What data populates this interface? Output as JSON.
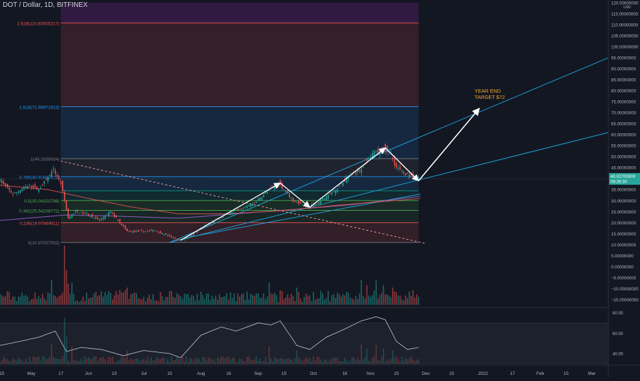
{
  "header": {
    "title": "DOT / Dollar, 1D, BITFINEX"
  },
  "currency_label": "USD",
  "colors": {
    "background": "#131722",
    "text": "#b2b5be",
    "up": "#26a69a",
    "down": "#ef5350",
    "channel": "#1e9fd8",
    "target_arrow": "#ffffff",
    "annotation": "#f5a623",
    "last_price_bg": "#26a69a"
  },
  "annotation": {
    "line1": "YEAR END",
    "line2": "TARGET $72"
  },
  "last_price": {
    "value": "40.02700000",
    "countdown": "08:28:30"
  },
  "chart_data": {
    "type": "candlestick",
    "y_axis": {
      "ylim": [
        -18,
        120
      ],
      "ticks": [
        {
          "value": 120,
          "label": "120.00000000"
        },
        {
          "value": 115,
          "label": "115.00000000"
        },
        {
          "value": 110,
          "label": "110.00000000"
        },
        {
          "value": 105,
          "label": "105.00000000"
        },
        {
          "value": 100,
          "label": "100.00000000"
        },
        {
          "value": 95,
          "label": "95.00000000"
        },
        {
          "value": 90,
          "label": "90.00000000"
        },
        {
          "value": 85,
          "label": "85.00000000"
        },
        {
          "value": 80,
          "label": "80.00000000"
        },
        {
          "value": 75,
          "label": "75.00000000"
        },
        {
          "value": 70,
          "label": "70.00000000"
        },
        {
          "value": 65,
          "label": "65.00000000"
        },
        {
          "value": 60,
          "label": "60.00000000"
        },
        {
          "value": 55,
          "label": "55.00000000"
        },
        {
          "value": 50,
          "label": "50.00000000"
        },
        {
          "value": 45,
          "label": "45.00000000"
        },
        {
          "value": 35,
          "label": "35.00000000"
        },
        {
          "value": 30,
          "label": "30.00000000"
        },
        {
          "value": 25,
          "label": "25.00000000"
        },
        {
          "value": 20,
          "label": "20.00000000"
        },
        {
          "value": 15,
          "label": "15.00000000"
        },
        {
          "value": 10,
          "label": "10.00000000"
        },
        {
          "value": 5,
          "label": "5.00000000"
        },
        {
          "value": 0,
          "label": "0.00000000"
        },
        {
          "value": -5,
          "label": "−5.00000000"
        },
        {
          "value": -10,
          "label": "−10.00000000"
        },
        {
          "value": -15,
          "label": "−15.00000000"
        }
      ]
    },
    "oscillator_axis": {
      "ylim": [
        30,
        85
      ],
      "ticks": [
        {
          "value": 80,
          "label": "80.00"
        },
        {
          "value": 60,
          "label": "60.00"
        },
        {
          "value": 40,
          "label": "40.00"
        }
      ]
    },
    "x_axis": {
      "start": "2021-04-14",
      "end": "2022-03-10",
      "ticks": [
        {
          "date": "2021-04-15",
          "label": "15"
        },
        {
          "date": "2021-05-01",
          "label": "May"
        },
        {
          "date": "2021-05-17",
          "label": "17"
        },
        {
          "date": "2021-06-01",
          "label": "Jun"
        },
        {
          "date": "2021-06-15",
          "label": "15"
        },
        {
          "date": "2021-07-01",
          "label": "Jul"
        },
        {
          "date": "2021-07-15",
          "label": "15"
        },
        {
          "date": "2021-08-01",
          "label": "Aug"
        },
        {
          "date": "2021-08-16",
          "label": "16"
        },
        {
          "date": "2021-09-01",
          "label": "Sep"
        },
        {
          "date": "2021-09-15",
          "label": "15"
        },
        {
          "date": "2021-10-01",
          "label": "Oct"
        },
        {
          "date": "2021-10-18",
          "label": "18"
        },
        {
          "date": "2021-11-01",
          "label": "Nov"
        },
        {
          "date": "2021-11-15",
          "label": "15"
        },
        {
          "date": "2021-12-01",
          "label": "Dec"
        },
        {
          "date": "2021-12-15",
          "label": "15"
        },
        {
          "date": "2022-01-01",
          "label": "2022"
        },
        {
          "date": "2022-01-17",
          "label": "17"
        },
        {
          "date": "2022-02-01",
          "label": "Feb"
        },
        {
          "date": "2022-02-15",
          "label": "15"
        },
        {
          "date": "2022-03-01",
          "label": "Mar"
        }
      ]
    },
    "fib_levels": {
      "start": "2021-05-17",
      "end": "2021-11-27",
      "levels": [
        {
          "ratio": "2.618",
          "value": 110.83505217,
          "label": "2.618(110.83505217)",
          "color": "#ef5350",
          "fill": "rgba(239,83,80,0.16)"
        },
        {
          "ratio": "1.618",
          "value": 72.68971923,
          "label": "1.618(72.68971923)",
          "color": "#2196f3",
          "fill": "rgba(33,150,243,0.14)"
        },
        {
          "ratio": "1",
          "value": 49.1059034,
          "label": "1(49.1059034)",
          "color": "#787b86",
          "fill": "rgba(120,123,134,0.12)"
        },
        {
          "ratio": "0.786",
          "value": 40.92890222,
          "label": "0.786(40.92890222)",
          "color": "#2196f3",
          "fill": "rgba(33,150,243,0.14)"
        },
        {
          "ratio": "0.618",
          "value": 34.5,
          "label": "",
          "color": "#089981",
          "fill": "rgba(8,153,129,0.14)"
        },
        {
          "ratio": "0.5",
          "value": 30.04323798,
          "label": "0.5(30.04323798)",
          "color": "#4caf50",
          "fill": "rgba(76,175,80,0.13)"
        },
        {
          "ratio": "0.382",
          "value": 25.54208772,
          "label": "0.382(25.54208772)",
          "color": "#4caf50",
          "fill": "rgba(76,175,80,0.10)"
        },
        {
          "ratio": "0.236",
          "value": 19.97869911,
          "label": "0.236(19.97869911)",
          "color": "#ef5350",
          "fill": "rgba(239,83,80,0.14)"
        },
        {
          "ratio": "0",
          "value": 10.97057052,
          "label": "0(10.97057052)",
          "color": "#787b86",
          "fill": ""
        }
      ],
      "top_zone": {
        "value": 120,
        "fill": "rgba(156,39,176,0.22)"
      }
    },
    "price_path": [
      [
        "2021-04-14",
        40
      ],
      [
        "2021-04-22",
        33
      ],
      [
        "2021-05-01",
        37
      ],
      [
        "2021-05-06",
        35
      ],
      [
        "2021-05-14",
        44
      ],
      [
        "2021-05-18",
        38
      ],
      [
        "2021-05-22",
        22
      ],
      [
        "2021-05-26",
        25
      ],
      [
        "2021-06-01",
        24
      ],
      [
        "2021-06-08",
        21
      ],
      [
        "2021-06-14",
        25
      ],
      [
        "2021-06-20",
        19
      ],
      [
        "2021-06-23",
        16
      ],
      [
        "2021-07-01",
        16
      ],
      [
        "2021-07-08",
        16.5
      ],
      [
        "2021-07-15",
        14
      ],
      [
        "2021-07-21",
        12
      ],
      [
        "2021-07-26",
        13.5
      ],
      [
        "2021-08-05",
        19
      ],
      [
        "2021-08-16",
        24
      ],
      [
        "2021-08-23",
        26
      ],
      [
        "2021-08-31",
        29
      ],
      [
        "2021-09-07",
        34
      ],
      [
        "2021-09-13",
        38
      ],
      [
        "2021-09-21",
        30
      ],
      [
        "2021-09-29",
        27
      ],
      [
        "2021-10-06",
        30
      ],
      [
        "2021-10-14",
        35
      ],
      [
        "2021-10-22",
        42
      ],
      [
        "2021-10-27",
        44
      ],
      [
        "2021-11-04",
        52
      ],
      [
        "2021-11-09",
        54
      ],
      [
        "2021-11-13",
        51
      ],
      [
        "2021-11-16",
        45
      ],
      [
        "2021-11-21",
        42
      ],
      [
        "2021-11-27",
        40
      ]
    ],
    "volume": {
      "ylim": [
        0,
        25
      ],
      "spikes": [
        [
          "2021-05-19",
          24
        ],
        [
          "2021-05-20",
          14
        ],
        [
          "2021-05-12",
          10
        ],
        [
          "2021-05-23",
          9
        ],
        [
          "2021-06-22",
          7
        ],
        [
          "2021-09-07",
          9
        ],
        [
          "2021-09-22",
          7
        ],
        [
          "2021-10-27",
          10
        ],
        [
          "2021-10-30",
          8
        ],
        [
          "2021-11-04",
          10
        ],
        [
          "2021-11-08",
          8
        ],
        [
          "2021-11-13",
          7
        ]
      ]
    },
    "channel_lines": [
      [
        [
          "2021-07-15",
          11
        ],
        [
          "2022-03-10",
          95
        ]
      ],
      [
        [
          "2021-07-15",
          11
        ],
        [
          "2022-03-10",
          61
        ]
      ],
      [
        [
          "2021-07-23",
          13
        ],
        [
          "2021-11-28",
          33
        ]
      ]
    ],
    "descending_line": [
      [
        "2021-05-17",
        48
      ],
      [
        "2021-12-01",
        10.5
      ]
    ],
    "moving_averages": [
      {
        "color": "#9c6ade",
        "points": [
          [
            "2021-04-14",
            21
          ],
          [
            "2021-05-20",
            23.5
          ],
          [
            "2021-06-15",
            23
          ],
          [
            "2021-07-20",
            22
          ],
          [
            "2021-08-20",
            24
          ],
          [
            "2021-09-20",
            26
          ],
          [
            "2021-10-20",
            28
          ],
          [
            "2021-11-28",
            32
          ]
        ]
      },
      {
        "color": "#ef5350",
        "points": [
          [
            "2021-04-14",
            37
          ],
          [
            "2021-05-10",
            35
          ],
          [
            "2021-06-01",
            31
          ],
          [
            "2021-06-25",
            27
          ],
          [
            "2021-07-20",
            24
          ],
          [
            "2021-08-15",
            24
          ],
          [
            "2021-09-15",
            25.5
          ],
          [
            "2021-10-15",
            28
          ],
          [
            "2021-11-28",
            31
          ]
        ]
      }
    ],
    "pattern_arrows": [
      [
        [
          "2021-07-21",
          12
        ],
        [
          "2021-09-13",
          38
        ]
      ],
      [
        [
          "2021-09-13",
          38
        ],
        [
          "2021-09-29",
          27
        ]
      ],
      [
        [
          "2021-09-29",
          27
        ],
        [
          "2021-11-09",
          54
        ]
      ],
      [
        [
          "2021-11-09",
          54
        ],
        [
          "2021-11-27",
          39
        ]
      ]
    ],
    "target_arrow": [
      [
        "2021-11-27",
        39
      ],
      [
        "2021-12-30",
        72
      ]
    ],
    "oscillator": [
      [
        "2021-04-14",
        48
      ],
      [
        "2021-04-25",
        52
      ],
      [
        "2021-05-05",
        56
      ],
      [
        "2021-05-14",
        62
      ],
      [
        "2021-05-20",
        42
      ],
      [
        "2021-05-28",
        46
      ],
      [
        "2021-06-08",
        44
      ],
      [
        "2021-06-20",
        38
      ],
      [
        "2021-07-01",
        43
      ],
      [
        "2021-07-15",
        40
      ],
      [
        "2021-07-21",
        36
      ],
      [
        "2021-08-01",
        58
      ],
      [
        "2021-08-12",
        66
      ],
      [
        "2021-08-20",
        62
      ],
      [
        "2021-09-01",
        70
      ],
      [
        "2021-09-08",
        68
      ],
      [
        "2021-09-13",
        72
      ],
      [
        "2021-09-22",
        48
      ],
      [
        "2021-09-29",
        44
      ],
      [
        "2021-10-08",
        56
      ],
      [
        "2021-10-18",
        64
      ],
      [
        "2021-10-27",
        72
      ],
      [
        "2021-11-04",
        76
      ],
      [
        "2021-11-09",
        73
      ],
      [
        "2021-11-15",
        52
      ],
      [
        "2021-11-21",
        44
      ],
      [
        "2021-11-27",
        46
      ]
    ]
  }
}
